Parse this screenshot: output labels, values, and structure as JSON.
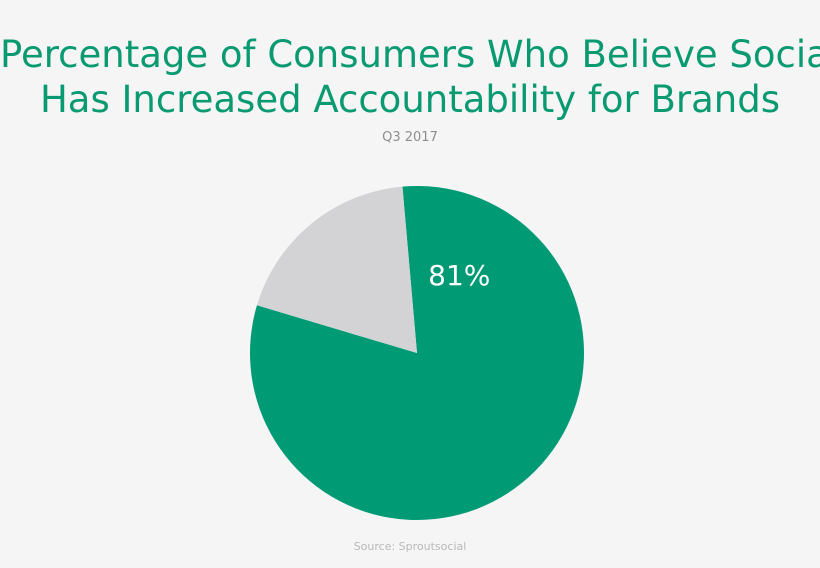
{
  "chart_data": {
    "type": "pie",
    "title": "Percentage of Consumers Who Believe Social Has Increased Accountability for Brands",
    "title_lines": [
      "Percentage of Consumers Who Believe Social",
      "Has Increased Accountability for Brands"
    ],
    "subtitle": "Q3 2017",
    "source": "Source: Sproutsocial",
    "slices": [
      {
        "value": 81,
        "label": "81%",
        "color": "#009a74"
      },
      {
        "value": 19,
        "label": "",
        "color": "#d3d3d5"
      }
    ]
  }
}
